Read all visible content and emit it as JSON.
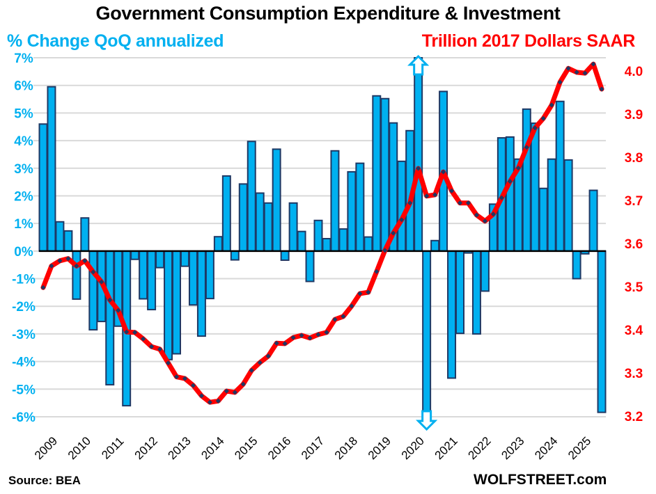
{
  "chart_data": {
    "type": "bar",
    "title": "Government Consumption Expenditure & Investment",
    "source": "Source: BEA",
    "brand": "WOLFSTREET.com",
    "left_axis": {
      "label": "% Change QoQ annualized",
      "range": [
        -6,
        7
      ],
      "ticks": [
        "7%",
        "6%",
        "5%",
        "4%",
        "3%",
        "2%",
        "1%",
        "0%",
        "-1%",
        "-2%",
        "-3%",
        "-4%",
        "-5%",
        "-6%"
      ],
      "tick_values": [
        7,
        6,
        5,
        4,
        3,
        2,
        1,
        0,
        -1,
        -2,
        -3,
        -4,
        -5,
        -6
      ],
      "color": "#00b0f0"
    },
    "right_axis": {
      "label": "Trillion 2017 Dollars SAAR",
      "range": [
        3.2,
        4.03
      ],
      "ticks": [
        "4.0",
        "3.9",
        "3.8",
        "3.7",
        "3.6",
        "3.5",
        "3.4",
        "3.3",
        "3.2"
      ],
      "tick_values": [
        4.0,
        3.9,
        3.8,
        3.7,
        3.6,
        3.5,
        3.4,
        3.3,
        3.2
      ],
      "color": "#ff0000"
    },
    "x_labels": [
      "2009",
      "2010",
      "2011",
      "2012",
      "2013",
      "2014",
      "2015",
      "2016",
      "2017",
      "2018",
      "2019",
      "2020",
      "2021",
      "2022",
      "2023",
      "2024",
      "2025"
    ],
    "first_period": "2009Q1",
    "grid": true,
    "series": [
      {
        "name": "% Change QoQ annualized",
        "type": "bar",
        "axis": "left",
        "color": "#00b0f0",
        "edge_color": "#1f3864",
        "values": [
          4.6,
          5.95,
          1.06,
          0.73,
          -1.74,
          1.2,
          -2.85,
          -2.55,
          -4.84,
          -2.72,
          -5.6,
          -0.3,
          -1.73,
          -2.12,
          -0.6,
          -3.93,
          -3.72,
          -0.55,
          -1.95,
          -3.08,
          -1.72,
          0.52,
          2.72,
          -0.32,
          2.43,
          3.97,
          2.1,
          1.74,
          3.69,
          -0.33,
          1.74,
          0.71,
          -1.1,
          1.11,
          0.45,
          3.63,
          0.8,
          2.87,
          3.18,
          0.51,
          5.62,
          5.52,
          4.64,
          3.25,
          4.36,
          7.0,
          -6.0,
          0.38,
          5.78,
          -4.6,
          -2.98,
          -0.07,
          -3.0,
          -1.45,
          1.7,
          4.1,
          4.13,
          3.33,
          5.14,
          4.63,
          2.27,
          3.33,
          5.42,
          3.3,
          -1.0,
          -0.1,
          2.2,
          -5.84
        ]
      },
      {
        "name": "Trillion 2017 Dollars SAAR",
        "type": "line",
        "axis": "right",
        "color": "#ff0000",
        "marker_color": "#1f3864",
        "values": [
          3.498,
          3.548,
          3.56,
          3.565,
          3.548,
          3.56,
          3.534,
          3.511,
          3.469,
          3.445,
          3.395,
          3.394,
          3.379,
          3.361,
          3.355,
          3.323,
          3.291,
          3.287,
          3.271,
          3.247,
          3.232,
          3.235,
          3.258,
          3.255,
          3.274,
          3.306,
          3.324,
          3.339,
          3.369,
          3.368,
          3.382,
          3.387,
          3.381,
          3.389,
          3.394,
          3.424,
          3.431,
          3.455,
          3.484,
          3.487,
          3.535,
          3.584,
          3.624,
          3.655,
          3.694,
          3.774,
          3.71,
          3.713,
          3.766,
          3.722,
          3.694,
          3.694,
          3.666,
          3.652,
          3.668,
          3.706,
          3.744,
          3.775,
          3.823,
          3.868,
          3.89,
          3.921,
          3.974,
          4.006,
          3.997,
          3.995,
          4.016,
          3.958
        ]
      }
    ],
    "annotations": [
      {
        "index": 45,
        "period": "2020Q2",
        "type": "arrow-up",
        "note": "bar exceeds axis max"
      },
      {
        "index": 46,
        "period": "2020Q3",
        "type": "arrow-down",
        "note": "bar exceeds axis min"
      }
    ]
  }
}
